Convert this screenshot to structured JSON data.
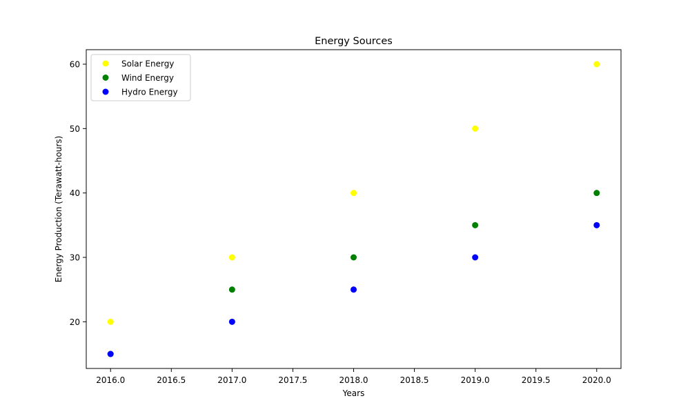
{
  "chart_data": {
    "type": "scatter",
    "title": "Energy Sources",
    "xlabel": "Years",
    "ylabel": "Energy Production (Terawatt-hours)",
    "xlim": [
      2015.8,
      2020.2
    ],
    "ylim": [
      12.75,
      62.25
    ],
    "x_ticks": [
      "2016.0",
      "2016.5",
      "2017.0",
      "2017.5",
      "2018.0",
      "2018.5",
      "2019.0",
      "2019.5",
      "2020.0"
    ],
    "y_ticks": [
      "20",
      "30",
      "40",
      "50",
      "60"
    ],
    "grid": false,
    "legend_position": "top-left",
    "series": [
      {
        "name": "Solar Energy",
        "color": "#ffff00",
        "x": [
          2016,
          2017,
          2018,
          2019,
          2020
        ],
        "y": [
          20,
          30,
          40,
          50,
          60
        ]
      },
      {
        "name": "Wind Energy",
        "color": "#008000",
        "x": [
          2016,
          2017,
          2018,
          2019,
          2020
        ],
        "y": [
          15,
          25,
          30,
          35,
          40
        ]
      },
      {
        "name": "Hydro Energy",
        "color": "#0000ff",
        "x": [
          2016,
          2017,
          2018,
          2019,
          2020
        ],
        "y": [
          15,
          20,
          25,
          30,
          35
        ]
      }
    ]
  }
}
